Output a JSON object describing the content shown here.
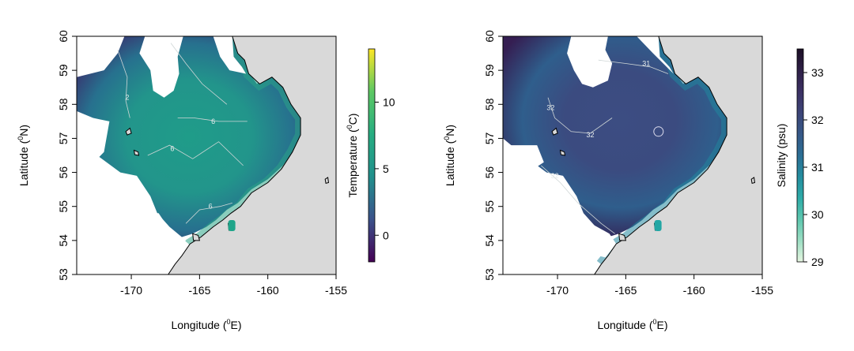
{
  "maps": [
    {
      "variable": "Temperature",
      "colorbar_label": "Temperature (⁰C)",
      "colorbar_label_main": "Temperature (",
      "colorbar_label_sup": "0",
      "colorbar_label_end": "C)",
      "colorbar_range": [
        -2,
        14
      ],
      "colorbar_ticks": [
        {
          "value": 0,
          "label": "0"
        },
        {
          "value": 5,
          "label": "5"
        },
        {
          "value": 10,
          "label": "10"
        }
      ],
      "palette": [
        "#440154",
        "#3b528b",
        "#21908c",
        "#27ad81",
        "#5dc863",
        "#fde725"
      ],
      "contour_labels": [
        {
          "text": "2",
          "lon": -170.3,
          "lat": 58.2
        },
        {
          "text": "6",
          "lon": -164.0,
          "lat": 57.5
        },
        {
          "text": "6",
          "lon": -167.0,
          "lat": 56.7
        },
        {
          "text": "6",
          "lon": -164.2,
          "lat": 55.0
        }
      ]
    },
    {
      "variable": "Salinity",
      "colorbar_label": "Salinity (psu)",
      "colorbar_range": [
        29,
        33.5
      ],
      "colorbar_ticks": [
        {
          "value": 29,
          "label": "29"
        },
        {
          "value": 30,
          "label": "30"
        },
        {
          "value": 31,
          "label": "31"
        },
        {
          "value": 32,
          "label": "32"
        },
        {
          "value": 33,
          "label": "33"
        }
      ],
      "palette": [
        "#e5f5e0",
        "#6ccfb0",
        "#1fa2a6",
        "#2b6e94",
        "#3d4a7e",
        "#3a2a5c",
        "#1c0f26"
      ],
      "contour_labels": [
        {
          "text": "31",
          "lon": -163.5,
          "lat": 59.2
        },
        {
          "text": "32",
          "lon": -170.5,
          "lat": 57.9
        },
        {
          "text": "32",
          "lon": -167.6,
          "lat": 57.1
        },
        {
          "text": "32",
          "lon": -170.2,
          "lat": 55.9
        }
      ]
    }
  ],
  "axes": {
    "x_label": "Longitude (⁰E)",
    "x_label_main": "Longitude (",
    "x_label_sup": "0",
    "x_label_end": "E)",
    "y_label": "Latitude (⁰N)",
    "y_label_main": "Latitude (",
    "y_label_sup": "0",
    "y_label_end": "N)",
    "x_range": [
      -174,
      -155
    ],
    "y_range": [
      53,
      60
    ],
    "x_ticks": [
      {
        "value": -170,
        "label": "-170"
      },
      {
        "value": -165,
        "label": "-165"
      },
      {
        "value": -160,
        "label": "-160"
      },
      {
        "value": -155,
        "label": "-155"
      }
    ],
    "y_ticks": [
      {
        "value": 53,
        "label": "53"
      },
      {
        "value": 54,
        "label": "54"
      },
      {
        "value": 55,
        "label": "55"
      },
      {
        "value": 56,
        "label": "56"
      },
      {
        "value": 57,
        "label": "57"
      },
      {
        "value": 58,
        "label": "58"
      },
      {
        "value": 59,
        "label": "59"
      },
      {
        "value": 60,
        "label": "60"
      }
    ]
  },
  "land_color": "#d9d9d9"
}
